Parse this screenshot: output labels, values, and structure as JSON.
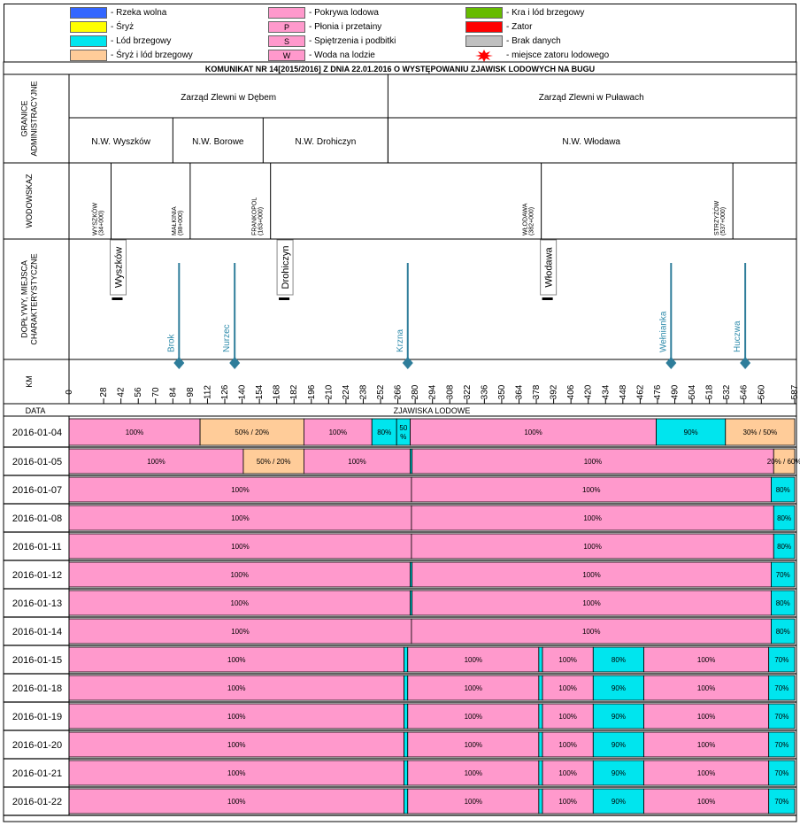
{
  "legend": {
    "items": [
      {
        "label": "- Rzeka wolna",
        "color": "#3366ff",
        "symbol": ""
      },
      {
        "label": "- Śryż",
        "color": "#ffff00",
        "symbol": ""
      },
      {
        "label": "- Lód brzegowy",
        "color": "#00e5ee",
        "symbol": ""
      },
      {
        "label": "- Śryż i lód brzegowy",
        "color": "#ffcc99",
        "symbol": ""
      },
      {
        "label": "- Pokrywa lodowa",
        "color": "#ff99cc",
        "symbol": ""
      },
      {
        "label": "- Płonia i przetainy",
        "color": "#ff99cc",
        "symbol": "P"
      },
      {
        "label": "- Spiętrzenia i podbitki",
        "color": "#ff99cc",
        "symbol": "S"
      },
      {
        "label": "- Woda na lodzie",
        "color": "#ff99cc",
        "symbol": "W"
      },
      {
        "label": "- Kra i lód brzegowy",
        "color": "#66bb00",
        "symbol": ""
      },
      {
        "label": "- Zator",
        "color": "#ff0000",
        "symbol": ""
      },
      {
        "label": "- Brak danych",
        "color": "#c0c0c0",
        "symbol": ""
      },
      {
        "label": "- miejsce zatoru lodowego",
        "color": "#ff0000",
        "symbol": "star"
      }
    ]
  },
  "header": {
    "title": "KOMUNIKAT NR 14[2015/2016] Z DNIA 22.01.2016 O WYSTĘPOWANIU ZJAWISK LODOWYCH NA BUGU"
  },
  "row_labels": {
    "granice": [
      "GRANICE",
      "ADMINISTRACYJNE"
    ],
    "wodowskaz": "WODOWSKAZ",
    "doplywy": [
      "DOPŁYWY, MIEJSCA",
      "CHARAKTERYSTYCZNE"
    ],
    "km": "KM",
    "data": "DATA",
    "zjawiska": "ZJAWISKA LODOWE"
  },
  "admin": {
    "zarzady": [
      {
        "name": "Zarząd Zlewni w Dębem",
        "km_from": 0,
        "km_to": 258
      },
      {
        "name": "Zarząd Zlewni w Puławach",
        "km_from": 258,
        "km_to": 587
      }
    ],
    "nadzory": [
      {
        "name": "N.W. Wyszków",
        "km_from": 0,
        "km_to": 84
      },
      {
        "name": "N.W. Borowe",
        "km_from": 84,
        "km_to": 157
      },
      {
        "name": "N.W. Drohiczyn",
        "km_from": 157,
        "km_to": 258
      },
      {
        "name": "N.W. Włodawa",
        "km_from": 258,
        "km_to": 587
      }
    ]
  },
  "gauges": [
    {
      "name": "WYSZKÓW",
      "chain": "(34+000)",
      "km": 34
    },
    {
      "name": "MAŁKINIA",
      "chain": "(98+000)",
      "km": 98
    },
    {
      "name": "FRANKOPOL",
      "chain": "(163+000)",
      "km": 163
    },
    {
      "name": "WŁODAWA",
      "chain": "(382+000)",
      "km": 382
    },
    {
      "name": "STRZYŻÓW",
      "chain": "(537+000)",
      "km": 537
    }
  ],
  "gauge_dividers_km": [
    34,
    98,
    163,
    382,
    537
  ],
  "places": [
    {
      "name": "Wyszków",
      "km": 34
    },
    {
      "name": "Drohiczyn",
      "km": 169
    },
    {
      "name": "Włodawa",
      "km": 382
    }
  ],
  "tributaries": [
    {
      "name": "Brok",
      "km": 89
    },
    {
      "name": "Nurzec",
      "km": 134
    },
    {
      "name": "Krzna",
      "km": 274
    },
    {
      "name": "Wełnianka",
      "km": 487
    },
    {
      "name": "Huczwa",
      "km": 547
    }
  ],
  "chart_data": {
    "type": "table",
    "title": "KOMUNIKAT NR 14[2015/2016] Z DNIA 22.01.2016 O WYSTĘPOWANIU ZJAWISK LODOWYCH NA BUGU",
    "xlabel": "KM",
    "xlim": [
      0,
      587
    ],
    "km_ticks": [
      0,
      28,
      42,
      56,
      70,
      84,
      98,
      112,
      126,
      140,
      154,
      168,
      182,
      196,
      210,
      224,
      238,
      252,
      266,
      280,
      294,
      308,
      322,
      336,
      350,
      364,
      378,
      392,
      406,
      420,
      434,
      448,
      462,
      476,
      490,
      504,
      518,
      532,
      546,
      560,
      587
    ],
    "series": [
      {
        "name": "- Pokrywa lodowa",
        "color": "#ff99cc"
      },
      {
        "name": "- Lód brzegowy",
        "color": "#00e5ee"
      },
      {
        "name": "- Śryż i lód brzegowy",
        "color": "#ffcc99"
      }
    ],
    "rows": [
      {
        "date": "2016-01-04",
        "segments": [
          {
            "from": 0,
            "to": 106,
            "type": "pokrywa",
            "label": "100%"
          },
          {
            "from": 106,
            "to": 190,
            "type": "sryz_lod",
            "label": "50% / 20%"
          },
          {
            "from": 190,
            "to": 245,
            "type": "pokrywa",
            "label": "100%"
          },
          {
            "from": 245,
            "to": 265,
            "type": "lod_brzegowy",
            "label": "80%"
          },
          {
            "from": 265,
            "to": 276,
            "type": "lod_brzegowy",
            "label": "50 %"
          },
          {
            "from": 276,
            "to": 475,
            "type": "pokrywa",
            "label": "100%"
          },
          {
            "from": 475,
            "to": 531,
            "type": "lod_brzegowy",
            "label": "90%"
          },
          {
            "from": 531,
            "to": 587,
            "type": "sryz_lod",
            "label": "30% / 50%"
          }
        ]
      },
      {
        "date": "2016-01-05",
        "segments": [
          {
            "from": 0,
            "to": 141,
            "type": "pokrywa",
            "label": "100%"
          },
          {
            "from": 141,
            "to": 190,
            "type": "sryz_lod",
            "label": "50% / 20%"
          },
          {
            "from": 190,
            "to": 276,
            "type": "pokrywa",
            "label": "100%"
          },
          {
            "from": 276,
            "to": 277.5,
            "type": "lod_brzegowy",
            "label": ""
          },
          {
            "from": 277.5,
            "to": 570,
            "type": "pokrywa",
            "label": "100%"
          },
          {
            "from": 570,
            "to": 587,
            "type": "sryz_lod",
            "label": "20% / 60%"
          }
        ]
      },
      {
        "date": "2016-01-07",
        "segments": [
          {
            "from": 0,
            "to": 277,
            "type": "pokrywa",
            "label": "100%"
          },
          {
            "from": 277,
            "to": 568,
            "type": "pokrywa",
            "label": "100%"
          },
          {
            "from": 568,
            "to": 587,
            "type": "lod_brzegowy",
            "label": "80%"
          }
        ]
      },
      {
        "date": "2016-01-08",
        "segments": [
          {
            "from": 0,
            "to": 277,
            "type": "pokrywa",
            "label": "100%"
          },
          {
            "from": 277,
            "to": 570,
            "type": "pokrywa",
            "label": "100%"
          },
          {
            "from": 570,
            "to": 587,
            "type": "lod_brzegowy",
            "label": "80%"
          }
        ]
      },
      {
        "date": "2016-01-11",
        "segments": [
          {
            "from": 0,
            "to": 277,
            "type": "pokrywa",
            "label": "100%"
          },
          {
            "from": 277,
            "to": 570,
            "type": "pokrywa",
            "label": "100%"
          },
          {
            "from": 570,
            "to": 587,
            "type": "lod_brzegowy",
            "label": "80%"
          }
        ]
      },
      {
        "date": "2016-01-12",
        "segments": [
          {
            "from": 0,
            "to": 276,
            "type": "pokrywa",
            "label": "100%"
          },
          {
            "from": 276,
            "to": 277.5,
            "type": "lod_brzegowy",
            "label": ""
          },
          {
            "from": 277.5,
            "to": 568,
            "type": "pokrywa",
            "label": "100%"
          },
          {
            "from": 568,
            "to": 587,
            "type": "lod_brzegowy",
            "label": "70%"
          }
        ]
      },
      {
        "date": "2016-01-13",
        "segments": [
          {
            "from": 0,
            "to": 276,
            "type": "pokrywa",
            "label": "100%"
          },
          {
            "from": 276,
            "to": 277.5,
            "type": "lod_brzegowy",
            "label": ""
          },
          {
            "from": 277.5,
            "to": 568,
            "type": "pokrywa",
            "label": "100%"
          },
          {
            "from": 568,
            "to": 587,
            "type": "lod_brzegowy",
            "label": "80%"
          }
        ]
      },
      {
        "date": "2016-01-14",
        "segments": [
          {
            "from": 0,
            "to": 277,
            "type": "pokrywa",
            "label": "100%"
          },
          {
            "from": 277,
            "to": 568,
            "type": "pokrywa",
            "label": "100%"
          },
          {
            "from": 568,
            "to": 587,
            "type": "lod_brzegowy",
            "label": "80%"
          }
        ]
      },
      {
        "date": "2016-01-15",
        "segments": [
          {
            "from": 0,
            "to": 271,
            "type": "pokrywa",
            "label": "100%"
          },
          {
            "from": 271,
            "to": 274,
            "type": "lod_brzegowy",
            "label": ""
          },
          {
            "from": 274,
            "to": 380,
            "type": "pokrywa",
            "label": "100%"
          },
          {
            "from": 380,
            "to": 383,
            "type": "lod_brzegowy",
            "label": ""
          },
          {
            "from": 383,
            "to": 424,
            "type": "pokrywa",
            "label": "100%"
          },
          {
            "from": 424,
            "to": 465,
            "type": "lod_brzegowy",
            "label": "80%"
          },
          {
            "from": 465,
            "to": 566,
            "type": "pokrywa",
            "label": "100%"
          },
          {
            "from": 566,
            "to": 587,
            "type": "lod_brzegowy",
            "label": "70%"
          }
        ]
      },
      {
        "date": "2016-01-18",
        "segments": [
          {
            "from": 0,
            "to": 271,
            "type": "pokrywa",
            "label": "100%"
          },
          {
            "from": 271,
            "to": 274,
            "type": "lod_brzegowy",
            "label": ""
          },
          {
            "from": 274,
            "to": 380,
            "type": "pokrywa",
            "label": "100%"
          },
          {
            "from": 380,
            "to": 383,
            "type": "lod_brzegowy",
            "label": ""
          },
          {
            "from": 383,
            "to": 424,
            "type": "pokrywa",
            "label": "100%"
          },
          {
            "from": 424,
            "to": 465,
            "type": "lod_brzegowy",
            "label": "90%"
          },
          {
            "from": 465,
            "to": 566,
            "type": "pokrywa",
            "label": "100%"
          },
          {
            "from": 566,
            "to": 587,
            "type": "lod_brzegowy",
            "label": "70%"
          }
        ]
      },
      {
        "date": "2016-01-19",
        "segments": [
          {
            "from": 0,
            "to": 271,
            "type": "pokrywa",
            "label": "100%"
          },
          {
            "from": 271,
            "to": 274,
            "type": "lod_brzegowy",
            "label": ""
          },
          {
            "from": 274,
            "to": 380,
            "type": "pokrywa",
            "label": "100%"
          },
          {
            "from": 380,
            "to": 383,
            "type": "lod_brzegowy",
            "label": ""
          },
          {
            "from": 383,
            "to": 424,
            "type": "pokrywa",
            "label": "100%"
          },
          {
            "from": 424,
            "to": 465,
            "type": "lod_brzegowy",
            "label": "90%"
          },
          {
            "from": 465,
            "to": 566,
            "type": "pokrywa",
            "label": "100%"
          },
          {
            "from": 566,
            "to": 587,
            "type": "lod_brzegowy",
            "label": "70%"
          }
        ]
      },
      {
        "date": "2016-01-20",
        "segments": [
          {
            "from": 0,
            "to": 271,
            "type": "pokrywa",
            "label": "100%"
          },
          {
            "from": 271,
            "to": 274,
            "type": "lod_brzegowy",
            "label": ""
          },
          {
            "from": 274,
            "to": 380,
            "type": "pokrywa",
            "label": "100%"
          },
          {
            "from": 380,
            "to": 383,
            "type": "lod_brzegowy",
            "label": ""
          },
          {
            "from": 383,
            "to": 424,
            "type": "pokrywa",
            "label": "100%"
          },
          {
            "from": 424,
            "to": 465,
            "type": "lod_brzegowy",
            "label": "90%"
          },
          {
            "from": 465,
            "to": 566,
            "type": "pokrywa",
            "label": "100%"
          },
          {
            "from": 566,
            "to": 587,
            "type": "lod_brzegowy",
            "label": "70%"
          }
        ]
      },
      {
        "date": "2016-01-21",
        "segments": [
          {
            "from": 0,
            "to": 271,
            "type": "pokrywa",
            "label": "100%"
          },
          {
            "from": 271,
            "to": 274,
            "type": "lod_brzegowy",
            "label": ""
          },
          {
            "from": 274,
            "to": 380,
            "type": "pokrywa",
            "label": "100%"
          },
          {
            "from": 380,
            "to": 383,
            "type": "lod_brzegowy",
            "label": ""
          },
          {
            "from": 383,
            "to": 424,
            "type": "pokrywa",
            "label": "100%"
          },
          {
            "from": 424,
            "to": 465,
            "type": "lod_brzegowy",
            "label": "90%"
          },
          {
            "from": 465,
            "to": 566,
            "type": "pokrywa",
            "label": "100%"
          },
          {
            "from": 566,
            "to": 587,
            "type": "lod_brzegowy",
            "label": "70%"
          }
        ]
      },
      {
        "date": "2016-01-22",
        "segments": [
          {
            "from": 0,
            "to": 271,
            "type": "pokrywa",
            "label": "100%"
          },
          {
            "from": 271,
            "to": 274,
            "type": "lod_brzegowy",
            "label": ""
          },
          {
            "from": 274,
            "to": 380,
            "type": "pokrywa",
            "label": "100%"
          },
          {
            "from": 380,
            "to": 383,
            "type": "lod_brzegowy",
            "label": ""
          },
          {
            "from": 383,
            "to": 424,
            "type": "pokrywa",
            "label": "100%"
          },
          {
            "from": 424,
            "to": 465,
            "type": "lod_brzegowy",
            "label": "90%"
          },
          {
            "from": 465,
            "to": 566,
            "type": "pokrywa",
            "label": "100%"
          },
          {
            "from": 566,
            "to": 587,
            "type": "lod_brzegowy",
            "label": "70%"
          }
        ]
      }
    ]
  },
  "colors": {
    "pokrywa": "#ff99cc",
    "lod_brzegowy": "#00e5ee",
    "sryz_lod": "#ffcc99",
    "tributary": "#2e7d9a",
    "tributary_text": "#2e8bab"
  }
}
